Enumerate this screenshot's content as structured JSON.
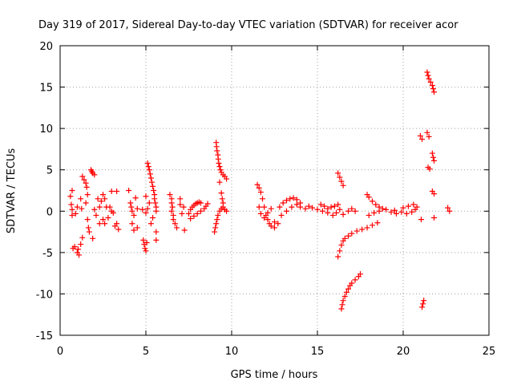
{
  "chart_data": {
    "type": "scatter",
    "title": "Day 319 of 2017, Sidereal Day-to-day VTEC variation (SDTVAR) for receiver acor",
    "xlabel": "GPS time / hours",
    "ylabel": "SDTVAR / TECUs",
    "xlim": [
      0,
      25
    ],
    "ylim": [
      -15,
      20
    ],
    "xticks": [
      0,
      5,
      10,
      15,
      20,
      25
    ],
    "yticks": [
      -15,
      -10,
      -5,
      0,
      5,
      10,
      15,
      20
    ],
    "grid": true,
    "marker": "+",
    "color": "#ff0000",
    "series": [
      {
        "name": "SDTVAR",
        "points": [
          [
            0.6,
            1.8
          ],
          [
            0.7,
            2.5
          ],
          [
            0.65,
            0.8
          ],
          [
            0.7,
            0.2
          ],
          [
            0.7,
            -0.5
          ],
          [
            0.75,
            -4.5
          ],
          [
            0.85,
            -4.3
          ],
          [
            0.9,
            -0.3
          ],
          [
            1.0,
            0.5
          ],
          [
            1.0,
            -5.0
          ],
          [
            1.05,
            -4.6
          ],
          [
            1.1,
            -5.3
          ],
          [
            1.2,
            -4.0
          ],
          [
            1.3,
            -3.2
          ],
          [
            1.2,
            1.5
          ],
          [
            1.25,
            0.3
          ],
          [
            1.3,
            4.2
          ],
          [
            1.4,
            3.8
          ],
          [
            1.5,
            3.4
          ],
          [
            1.55,
            2.9
          ],
          [
            1.6,
            2.0
          ],
          [
            1.5,
            1.0
          ],
          [
            1.6,
            -1.0
          ],
          [
            1.65,
            -2.0
          ],
          [
            1.7,
            -2.5
          ],
          [
            1.8,
            5.0
          ],
          [
            1.85,
            4.8
          ],
          [
            1.9,
            4.6
          ],
          [
            2.0,
            4.4
          ],
          [
            1.9,
            -3.3
          ],
          [
            2.0,
            0.2
          ],
          [
            2.1,
            -0.5
          ],
          [
            2.2,
            1.5
          ],
          [
            2.3,
            0.5
          ],
          [
            2.4,
            1.2
          ],
          [
            2.5,
            2.0
          ],
          [
            2.6,
            1.5
          ],
          [
            2.3,
            -1.5
          ],
          [
            2.5,
            -1.0
          ],
          [
            2.6,
            -1.5
          ],
          [
            2.7,
            0.5
          ],
          [
            2.8,
            -0.8
          ],
          [
            2.9,
            0.5
          ],
          [
            3.0,
            0.0
          ],
          [
            3.0,
            2.4
          ],
          [
            3.2,
            -1.8
          ],
          [
            3.3,
            -1.5
          ],
          [
            3.4,
            -2.2
          ],
          [
            3.3,
            2.4
          ],
          [
            3.1,
            -0.2
          ],
          [
            4.0,
            2.5
          ],
          [
            4.1,
            1.0
          ],
          [
            4.15,
            0.5
          ],
          [
            4.2,
            0.0
          ],
          [
            4.3,
            -0.5
          ],
          [
            4.3,
            -2.3
          ],
          [
            4.2,
            -1.5
          ],
          [
            4.4,
            1.6
          ],
          [
            4.5,
            0.3
          ],
          [
            4.5,
            -2.0
          ],
          [
            4.8,
            0.2
          ],
          [
            4.85,
            -3.5
          ],
          [
            4.9,
            -4.0
          ],
          [
            4.95,
            -4.5
          ],
          [
            5.0,
            -4.8
          ],
          [
            5.05,
            -3.8
          ],
          [
            5.0,
            -0.2
          ],
          [
            5.1,
            0.3
          ],
          [
            5.1,
            5.8
          ],
          [
            5.15,
            5.4
          ],
          [
            5.2,
            5.0
          ],
          [
            5.25,
            4.5
          ],
          [
            5.3,
            4.0
          ],
          [
            5.35,
            3.5
          ],
          [
            5.4,
            3.0
          ],
          [
            5.45,
            2.5
          ],
          [
            5.5,
            2.0
          ],
          [
            5.5,
            1.5
          ],
          [
            5.55,
            1.0
          ],
          [
            5.6,
            0.5
          ],
          [
            5.6,
            0.0
          ],
          [
            5.4,
            -0.8
          ],
          [
            5.3,
            -1.5
          ],
          [
            5.6,
            -2.5
          ],
          [
            5.6,
            -3.5
          ],
          [
            5.0,
            1.8
          ],
          [
            5.2,
            1.0
          ],
          [
            6.4,
            2.0
          ],
          [
            6.5,
            1.5
          ],
          [
            6.5,
            1.0
          ],
          [
            6.55,
            0.5
          ],
          [
            6.5,
            0.0
          ],
          [
            6.6,
            -0.5
          ],
          [
            6.6,
            -1.0
          ],
          [
            6.7,
            -1.5
          ],
          [
            6.8,
            -2.0
          ],
          [
            7.0,
            1.5
          ],
          [
            7.0,
            0.8
          ],
          [
            7.1,
            -0.3
          ],
          [
            7.2,
            0.5
          ],
          [
            7.25,
            -2.3
          ],
          [
            7.5,
            -0.3
          ],
          [
            7.6,
            0.2
          ],
          [
            7.7,
            0.5
          ],
          [
            7.8,
            0.7
          ],
          [
            7.9,
            0.9
          ],
          [
            8.0,
            1.0
          ],
          [
            8.1,
            1.1
          ],
          [
            8.2,
            1.0
          ],
          [
            7.6,
            -0.9
          ],
          [
            7.8,
            -0.6
          ],
          [
            8.0,
            -0.3
          ],
          [
            8.2,
            0.0
          ],
          [
            8.4,
            0.3
          ],
          [
            8.5,
            0.6
          ],
          [
            8.6,
            0.9
          ],
          [
            9.0,
            -2.5
          ],
          [
            9.05,
            -2.0
          ],
          [
            9.1,
            -1.5
          ],
          [
            9.15,
            -1.0
          ],
          [
            9.2,
            -0.5
          ],
          [
            9.3,
            0.0
          ],
          [
            9.4,
            0.3
          ],
          [
            9.5,
            0.5
          ],
          [
            9.6,
            0.2
          ],
          [
            9.7,
            0.0
          ],
          [
            9.1,
            8.3
          ],
          [
            9.12,
            7.8
          ],
          [
            9.15,
            7.3
          ],
          [
            9.2,
            6.8
          ],
          [
            9.22,
            6.3
          ],
          [
            9.25,
            5.8
          ],
          [
            9.3,
            5.4
          ],
          [
            9.35,
            5.0
          ],
          [
            9.4,
            4.7
          ],
          [
            9.5,
            4.4
          ],
          [
            9.6,
            4.2
          ],
          [
            9.7,
            3.9
          ],
          [
            9.3,
            3.5
          ],
          [
            9.4,
            2.2
          ],
          [
            9.45,
            1.5
          ],
          [
            9.5,
            1.0
          ],
          [
            11.5,
            3.2
          ],
          [
            11.6,
            2.8
          ],
          [
            11.7,
            2.3
          ],
          [
            11.8,
            1.5
          ],
          [
            11.9,
            0.5
          ],
          [
            12.0,
            -0.5
          ],
          [
            12.1,
            -1.0
          ],
          [
            12.2,
            -1.5
          ],
          [
            12.3,
            -1.8
          ],
          [
            12.5,
            -2.0
          ],
          [
            12.7,
            -1.5
          ],
          [
            12.9,
            -0.5
          ],
          [
            11.6,
            0.5
          ],
          [
            11.7,
            -0.3
          ],
          [
            11.9,
            -0.8
          ],
          [
            12.1,
            -0.2
          ],
          [
            12.3,
            0.3
          ],
          [
            12.5,
            -1.3
          ],
          [
            12.8,
            0.5
          ],
          [
            13.0,
            1.0
          ],
          [
            13.2,
            1.3
          ],
          [
            13.4,
            1.5
          ],
          [
            13.6,
            1.6
          ],
          [
            13.8,
            1.4
          ],
          [
            14.0,
            1.0
          ],
          [
            13.2,
            0.0
          ],
          [
            13.5,
            0.5
          ],
          [
            13.8,
            0.8
          ],
          [
            14.0,
            0.5
          ],
          [
            14.3,
            0.3
          ],
          [
            14.5,
            0.6
          ],
          [
            14.7,
            0.4
          ],
          [
            15.0,
            0.2
          ],
          [
            15.3,
            0.0
          ],
          [
            15.6,
            0.3
          ],
          [
            15.8,
            0.5
          ],
          [
            16.0,
            0.6
          ],
          [
            16.2,
            0.8
          ],
          [
            15.2,
            0.8
          ],
          [
            15.4,
            0.6
          ],
          [
            15.6,
            -0.2
          ],
          [
            15.9,
            -0.5
          ],
          [
            16.1,
            -0.2
          ],
          [
            16.3,
            0.2
          ],
          [
            16.5,
            -0.4
          ],
          [
            16.8,
            0.0
          ],
          [
            17.0,
            0.3
          ],
          [
            17.2,
            0.0
          ],
          [
            16.2,
            4.6
          ],
          [
            16.3,
            4.1
          ],
          [
            16.4,
            3.6
          ],
          [
            16.5,
            3.1
          ],
          [
            16.2,
            -5.5
          ],
          [
            16.3,
            -4.8
          ],
          [
            16.4,
            -4.1
          ],
          [
            16.5,
            -3.6
          ],
          [
            16.6,
            -3.3
          ],
          [
            16.8,
            -3.0
          ],
          [
            17.0,
            -2.7
          ],
          [
            17.3,
            -2.4
          ],
          [
            17.6,
            -2.2
          ],
          [
            17.9,
            -2.0
          ],
          [
            18.2,
            -1.7
          ],
          [
            18.5,
            -1.4
          ],
          [
            16.4,
            -11.8
          ],
          [
            16.45,
            -11.3
          ],
          [
            16.5,
            -10.8
          ],
          [
            16.6,
            -10.3
          ],
          [
            16.7,
            -9.8
          ],
          [
            16.8,
            -9.4
          ],
          [
            16.9,
            -9.0
          ],
          [
            17.0,
            -8.7
          ],
          [
            17.2,
            -8.3
          ],
          [
            17.4,
            -7.9
          ],
          [
            17.5,
            -7.6
          ],
          [
            17.9,
            2.0
          ],
          [
            18.0,
            1.7
          ],
          [
            18.2,
            1.2
          ],
          [
            18.4,
            0.8
          ],
          [
            18.6,
            0.5
          ],
          [
            18.8,
            0.3
          ],
          [
            18.0,
            -0.5
          ],
          [
            18.3,
            -0.2
          ],
          [
            18.6,
            0.0
          ],
          [
            19.0,
            0.2
          ],
          [
            19.3,
            -0.1
          ],
          [
            19.6,
            -0.3
          ],
          [
            19.9,
            -0.1
          ],
          [
            19.5,
            0.1
          ],
          [
            20.0,
            0.4
          ],
          [
            20.3,
            0.6
          ],
          [
            20.6,
            0.8
          ],
          [
            20.8,
            0.5
          ],
          [
            20.2,
            -0.3
          ],
          [
            20.5,
            -0.1
          ],
          [
            20.7,
            0.2
          ],
          [
            21.0,
            9.1
          ],
          [
            21.1,
            8.7
          ],
          [
            21.05,
            -1.0
          ],
          [
            21.1,
            -11.6
          ],
          [
            21.15,
            -11.2
          ],
          [
            21.2,
            -10.8
          ],
          [
            21.4,
            9.5
          ],
          [
            21.5,
            9.0
          ],
          [
            21.45,
            5.3
          ],
          [
            21.55,
            5.1
          ],
          [
            21.7,
            7.0
          ],
          [
            21.75,
            6.5
          ],
          [
            21.8,
            6.1
          ],
          [
            21.7,
            2.4
          ],
          [
            21.8,
            2.1
          ],
          [
            21.8,
            -0.8
          ],
          [
            21.4,
            16.8
          ],
          [
            21.45,
            16.4
          ],
          [
            21.5,
            16.0
          ],
          [
            21.6,
            15.6
          ],
          [
            21.7,
            15.2
          ],
          [
            21.75,
            14.8
          ],
          [
            21.8,
            14.4
          ],
          [
            22.6,
            0.4
          ],
          [
            22.7,
            0.0
          ]
        ]
      }
    ]
  }
}
